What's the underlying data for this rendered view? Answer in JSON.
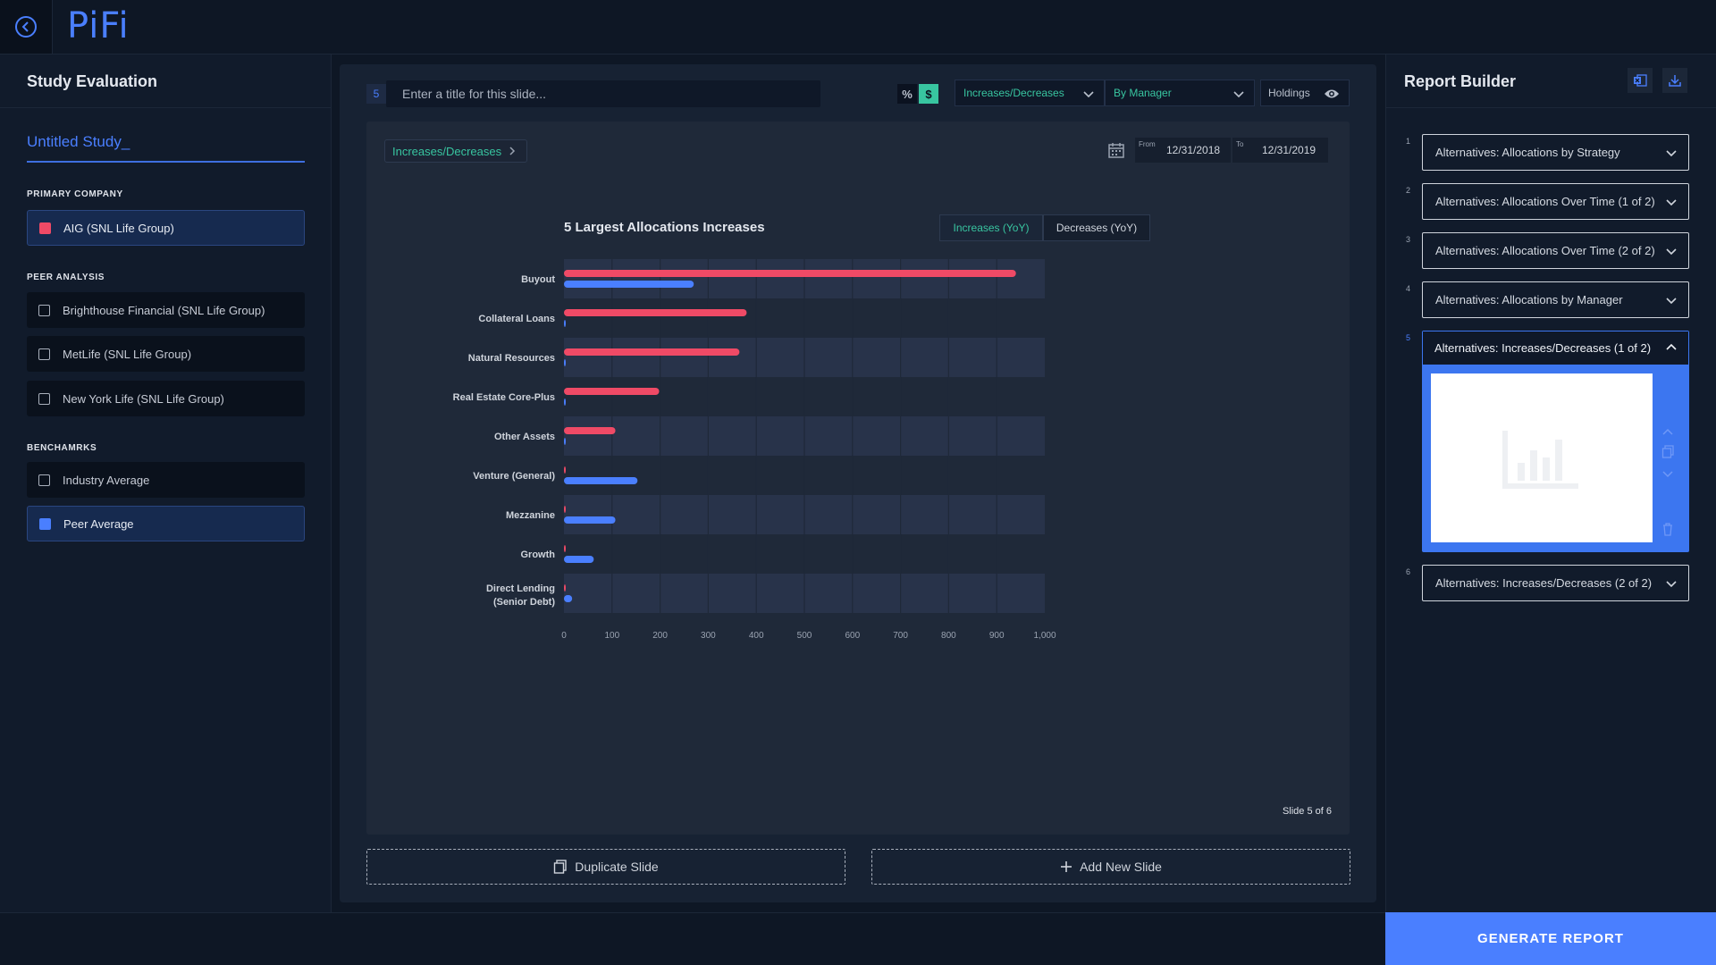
{
  "app": {
    "logo": "PiFi"
  },
  "left": {
    "title": "Study Evaluation",
    "study_name": "Untitled Study_",
    "primary_label": "PRIMARY COMPANY",
    "primary_company": "AIG (SNL Life Group)",
    "peer_label": "PEER ANALYSIS",
    "peers": [
      "Brighthouse Financial (SNL Life Group)",
      "MetLife (SNL Life Group)",
      "New York Life (SNL Life Group)"
    ],
    "bench_label": "BENCHAMRKS",
    "benchmarks": [
      "Industry Average",
      "Peer Average"
    ]
  },
  "toolbar": {
    "slide_number": "5",
    "title_placeholder": "Enter a title for this slide...",
    "pct_label": "%",
    "usd_label": "$",
    "dropdown1": "Increases/Decreases",
    "dropdown2": "By Manager",
    "holdings": "Holdings"
  },
  "chart_panel": {
    "breadcrumb": "Increases/Decreases",
    "from_label": "From",
    "from_date": "12/31/2018",
    "to_label": "To",
    "to_date": "12/31/2019",
    "seg_increases": "Increases (YoY)",
    "seg_decreases": "Decreases (YoY)",
    "slide_count": "Slide 5 of 6"
  },
  "chart_data": {
    "type": "bar",
    "orientation": "horizontal",
    "title": "5 Largest Allocations Increases",
    "categories": [
      "Buyout",
      "Collateral Loans",
      "Natural Resources",
      "Real Estate Core-Plus",
      "Other Assets",
      "Venture (General)",
      "Mezzanine",
      "Growth",
      "Direct Lending (Senior Debt)"
    ],
    "series": [
      {
        "color": "#ef4a66",
        "values": [
          940,
          380,
          365,
          198,
          107,
          3,
          3,
          3,
          3
        ]
      },
      {
        "color": "#4a7fff",
        "values": [
          270,
          3,
          3,
          3,
          3,
          153,
          107,
          62,
          17
        ]
      }
    ],
    "x_ticks": [
      "0",
      "100",
      "200",
      "300",
      "400",
      "500",
      "600",
      "700",
      "800",
      "900",
      "1,000"
    ],
    "xlim": [
      0,
      1000
    ]
  },
  "actions": {
    "duplicate": "Duplicate Slide",
    "add": "Add New Slide"
  },
  "right": {
    "title": "Report Builder",
    "items": [
      {
        "num": "1",
        "label": "Alternatives: Allocations by Strategy"
      },
      {
        "num": "2",
        "label": "Alternatives: Allocations Over Time (1 of 2)"
      },
      {
        "num": "3",
        "label": "Alternatives: Allocations Over Time (2 of 2)"
      },
      {
        "num": "4",
        "label": "Alternatives: Allocations by Manager"
      },
      {
        "num": "5",
        "label": "Alternatives: Increases/Decreases (1 of 2)"
      },
      {
        "num": "6",
        "label": "Alternatives: Increases/Decreases (2 of 2)"
      }
    ],
    "generate": "GENERATE REPORT"
  }
}
